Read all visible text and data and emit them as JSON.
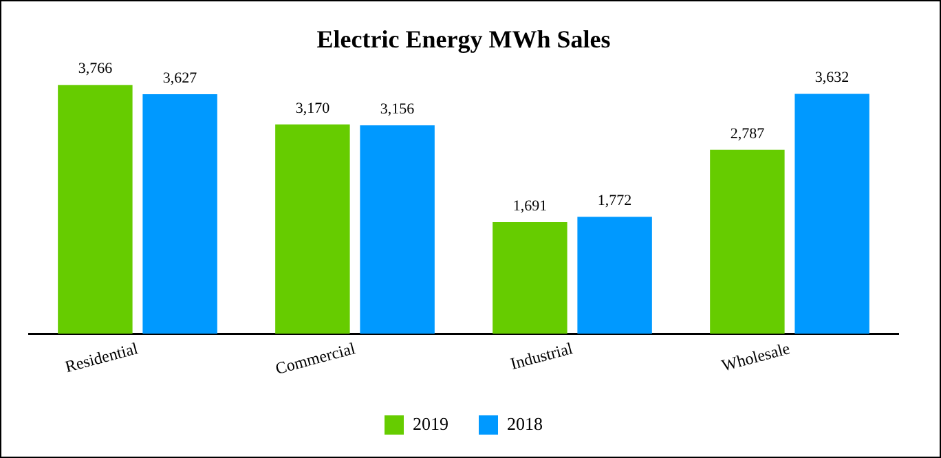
{
  "chart_data": {
    "type": "bar",
    "title": "Electric Energy MWh Sales",
    "categories": [
      "Residential",
      "Commercial",
      "Industrial",
      "Wholesale"
    ],
    "series": [
      {
        "name": "2019",
        "color": "#66cc00",
        "values": [
          3766,
          3170,
          1691,
          2787
        ],
        "value_labels": [
          "3,766",
          "3,170",
          "1,691",
          "2,787"
        ]
      },
      {
        "name": "2018",
        "color": "#0099ff",
        "values": [
          3627,
          3156,
          1772,
          3632
        ],
        "value_labels": [
          "3,627",
          "3,156",
          "1,772",
          "3,632"
        ]
      }
    ],
    "legend": "bottom",
    "grid": false
  }
}
